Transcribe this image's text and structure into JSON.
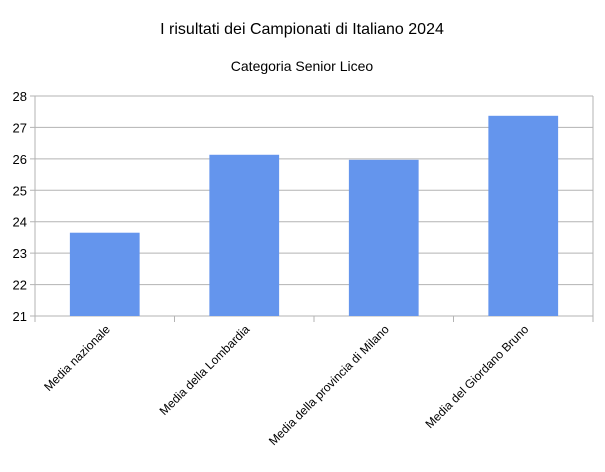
{
  "chart_data": {
    "type": "bar",
    "title": "I risultati dei Campionati di Italiano 2024",
    "subtitle": "Categoria Senior Liceo",
    "xlabel": "",
    "ylabel": "",
    "categories": [
      "Media nazionale",
      "Media della Lombardia",
      "Media della provincia di Milano",
      "Media del Giordano Bruno"
    ],
    "values": [
      23.65,
      26.13,
      25.97,
      27.37
    ],
    "ylim": [
      21,
      28
    ],
    "yticks": [
      "21",
      "22",
      "23",
      "24",
      "25",
      "26",
      "27",
      "28"
    ],
    "grid": true,
    "legend": "none",
    "bar_color": "#6495ED",
    "grid_color": "#b3b3b3"
  }
}
